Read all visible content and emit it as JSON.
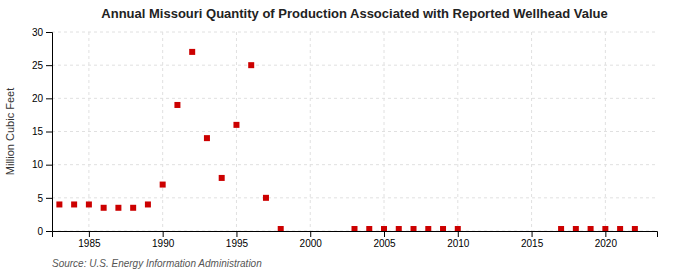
{
  "chart_data": {
    "type": "scatter",
    "title": "Annual Missouri Quantity of Production Associated with Reported Wellhead Value",
    "ylabel": "Million Cubic Feet",
    "annotation": "Source: U.S. Energy Information Administration",
    "x": [
      1983,
      1984,
      1985,
      1986,
      1987,
      1988,
      1989,
      1990,
      1991,
      1992,
      1993,
      1994,
      1995,
      1996,
      1997,
      1998,
      2003,
      2004,
      2005,
      2006,
      2007,
      2008,
      2009,
      2010,
      2017,
      2018,
      2019,
      2020,
      2021,
      2022
    ],
    "values": [
      4.0,
      4.0,
      4.0,
      3.5,
      3.5,
      3.5,
      4.0,
      7.0,
      19.0,
      27.0,
      14.0,
      8.0,
      16.0,
      25.0,
      5.0,
      0.3,
      0.3,
      0.3,
      0.3,
      0.3,
      0.3,
      0.3,
      0.3,
      0.3,
      0.3,
      0.3,
      0.3,
      0.3,
      0.3,
      0.3
    ],
    "color": "#cc0000",
    "marker": "square",
    "xlim": [
      1982.5,
      2023.5
    ],
    "ylim": [
      0,
      30
    ],
    "xticks": [
      1985,
      1990,
      1995,
      2000,
      2005,
      2010,
      2015,
      2020
    ],
    "yticks": [
      0,
      5,
      10,
      15,
      20,
      25,
      30
    ],
    "grid": true
  }
}
